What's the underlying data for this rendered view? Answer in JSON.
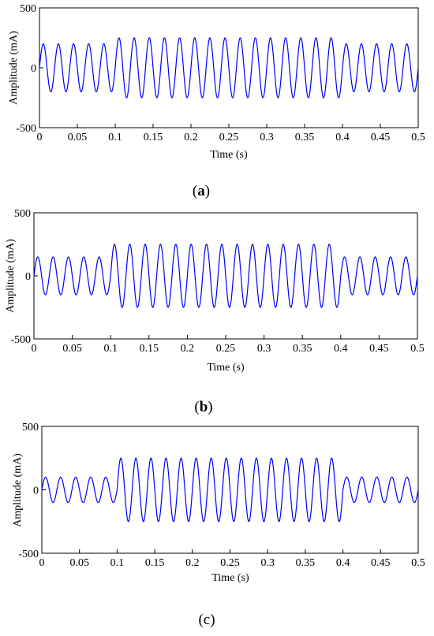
{
  "chart_data": [
    {
      "type": "line",
      "caption": "(a)",
      "caption_letter": "a",
      "xlabel": "Time (s)",
      "ylabel": "Amplitude (mA)",
      "xlim": [
        0,
        0.5
      ],
      "ylim": [
        -500,
        500
      ],
      "xticks": [
        0,
        0.05,
        0.1,
        0.15,
        0.2,
        0.25,
        0.3,
        0.35,
        0.4,
        0.45,
        0.5
      ],
      "xtick_labels": [
        "0",
        "0.05",
        "0.1",
        "0.15",
        "0.2",
        "0.25",
        "0.3",
        "0.35",
        "0.4",
        "0.45",
        "0.5"
      ],
      "yticks": [
        -500,
        0,
        500
      ],
      "ytick_labels": [
        "-500",
        "0",
        "500"
      ],
      "grid": false,
      "series": [
        {
          "color": "#0000ff",
          "frequency_hz": 50,
          "segments": [
            {
              "t_start": 0,
              "t_end": 0.1,
              "amplitude": 200
            },
            {
              "t_start": 0.1,
              "t_end": 0.4,
              "amplitude": 250
            },
            {
              "t_start": 0.4,
              "t_end": 0.5,
              "amplitude": 200
            }
          ]
        }
      ]
    },
    {
      "type": "line",
      "caption": "(b)",
      "caption_letter": "b",
      "xlabel": "Time (s)",
      "ylabel": "Amplitude (mA)",
      "xlim": [
        0,
        0.5
      ],
      "ylim": [
        -500,
        500
      ],
      "xticks": [
        0,
        0.05,
        0.1,
        0.15,
        0.2,
        0.25,
        0.3,
        0.35,
        0.4,
        0.45,
        0.5
      ],
      "xtick_labels": [
        "0",
        "0.05",
        "0.1",
        "0.15",
        "0.2",
        "0.25",
        "0.3",
        "0.35",
        "0.4",
        "0.45",
        "0.5"
      ],
      "yticks": [
        -500,
        0,
        500
      ],
      "ytick_labels": [
        "-500",
        "0",
        "500"
      ],
      "grid": false,
      "series": [
        {
          "color": "#0000ff",
          "frequency_hz": 50,
          "segments": [
            {
              "t_start": 0,
              "t_end": 0.1,
              "amplitude": 150
            },
            {
              "t_start": 0.1,
              "t_end": 0.4,
              "amplitude": 250
            },
            {
              "t_start": 0.4,
              "t_end": 0.5,
              "amplitude": 150
            }
          ]
        }
      ]
    },
    {
      "type": "line",
      "caption": "(c)",
      "caption_letter": "c",
      "xlabel": "Time (s)",
      "ylabel": "Amplitude (mA)",
      "xlim": [
        0,
        0.5
      ],
      "ylim": [
        -500,
        500
      ],
      "xticks": [
        0,
        0.05,
        0.1,
        0.15,
        0.2,
        0.25,
        0.3,
        0.35,
        0.4,
        0.45,
        0.5
      ],
      "xtick_labels": [
        "0",
        "0.05",
        "0.1",
        "0.15",
        "0.2",
        "0.25",
        "0.3",
        "0.35",
        "0.4",
        "0.45",
        "0.5"
      ],
      "yticks": [
        -500,
        0,
        500
      ],
      "ytick_labels": [
        "-500",
        "0",
        "500"
      ],
      "grid": false,
      "series": [
        {
          "color": "#0000ff",
          "frequency_hz": 50,
          "segments": [
            {
              "t_start": 0,
              "t_end": 0.1,
              "amplitude": 100
            },
            {
              "t_start": 0.1,
              "t_end": 0.4,
              "amplitude": 250
            },
            {
              "t_start": 0.4,
              "t_end": 0.5,
              "amplitude": 100
            }
          ]
        }
      ]
    }
  ]
}
